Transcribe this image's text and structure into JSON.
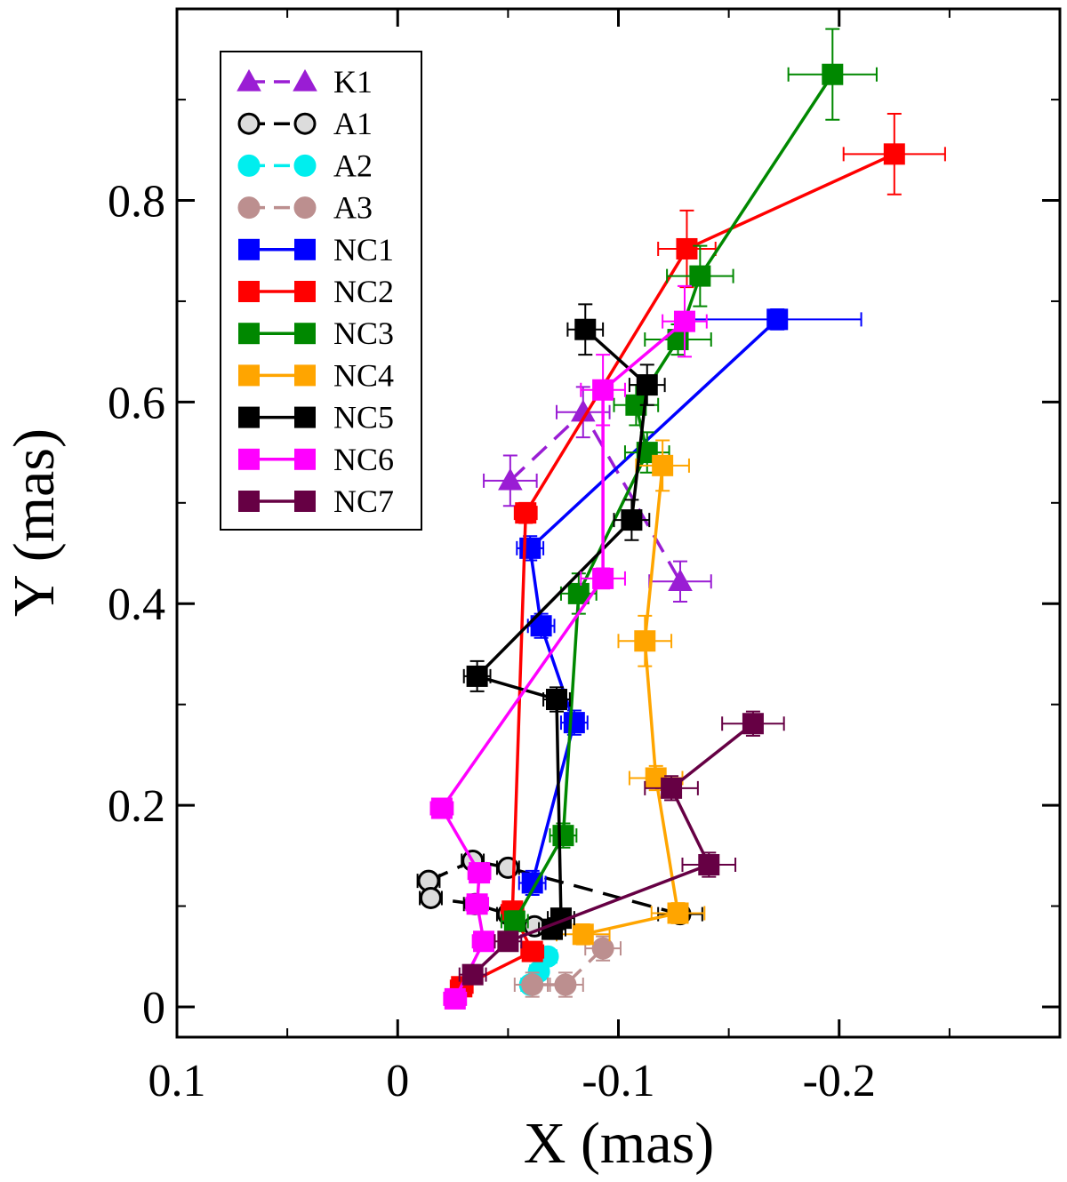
{
  "chart_data": {
    "type": "scatter",
    "title": "",
    "xlabel": "X (mas)",
    "ylabel": "Y (mas)",
    "xlim": [
      0.1,
      -0.3
    ],
    "ylim": [
      -0.03,
      0.99
    ],
    "x_ticks": [
      0.1,
      0,
      -0.1,
      -0.2
    ],
    "x_tick_labels": [
      "0.1",
      "0",
      "-0.1",
      "-0.2"
    ],
    "y_ticks": [
      0,
      0.2,
      0.4,
      0.6,
      0.8
    ],
    "y_tick_labels": [
      "0",
      "0.2",
      "0.4",
      "0.6",
      "0.8"
    ],
    "grid": false,
    "legend_position": "top-left",
    "series": [
      {
        "name": "K1",
        "color": "#9a1dd4",
        "marker": "triangle",
        "line": "dashed",
        "x": [
          -0.051,
          -0.084,
          -0.128
        ],
        "y": [
          0.522,
          0.59,
          0.422
        ],
        "xerr": [
          0.012,
          0.012,
          0.014
        ],
        "yerr": [
          0.025,
          0.025,
          0.02
        ]
      },
      {
        "name": "A1",
        "color": "#000000",
        "fill": "#dcdcdc",
        "marker": "circle",
        "line": "dashed",
        "x": [
          -0.128,
          -0.05,
          -0.034,
          -0.014,
          -0.015,
          -0.035,
          -0.05,
          -0.062
        ],
        "y": [
          0.092,
          0.138,
          0.145,
          0.125,
          0.108,
          0.102,
          0.092,
          0.08
        ],
        "xerr": [
          0.01,
          0.005,
          0.005,
          0.005,
          0.005,
          0.005,
          0.005,
          0.005
        ],
        "yerr": [
          0.008,
          0.006,
          0.006,
          0.006,
          0.006,
          0.006,
          0.006,
          0.006
        ]
      },
      {
        "name": "A2",
        "color": "#00eeee",
        "marker": "circle",
        "line": "dashed",
        "x": [
          -0.068,
          -0.064,
          -0.06
        ],
        "y": [
          0.05,
          0.035,
          0.022
        ],
        "xerr": [
          0.004,
          0.004,
          0.004
        ],
        "yerr": [
          0.006,
          0.006,
          0.006
        ]
      },
      {
        "name": "A3",
        "color": "#bc8f8f",
        "marker": "circle",
        "line": "dashed",
        "x": [
          -0.093,
          -0.076,
          -0.061
        ],
        "y": [
          0.058,
          0.022,
          0.022
        ],
        "xerr": [
          0.008,
          0.008,
          0.008
        ],
        "yerr": [
          0.012,
          0.012,
          0.012
        ]
      },
      {
        "name": "NC1",
        "color": "#0000ff",
        "marker": "square",
        "line": "solid",
        "x": [
          -0.172,
          -0.06,
          -0.065,
          -0.08,
          -0.061
        ],
        "y": [
          0.682,
          0.455,
          0.378,
          0.282,
          0.123
        ],
        "xerr": [
          0.038,
          0.006,
          0.006,
          0.006,
          0.006
        ],
        "yerr": [
          0.01,
          0.012,
          0.012,
          0.012,
          0.012
        ]
      },
      {
        "name": "NC2",
        "color": "#ff0000",
        "marker": "square",
        "line": "solid",
        "x": [
          -0.225,
          -0.131,
          -0.058,
          -0.052,
          -0.061,
          -0.029
        ],
        "y": [
          0.846,
          0.752,
          0.49,
          0.095,
          0.055,
          0.02
        ],
        "xerr": [
          0.023,
          0.013,
          0.005,
          0.005,
          0.005,
          0.005
        ],
        "yerr": [
          0.04,
          0.038,
          0.01,
          0.008,
          0.008,
          0.008
        ]
      },
      {
        "name": "NC3",
        "color": "#008800",
        "marker": "square",
        "line": "solid",
        "x": [
          -0.197,
          -0.137,
          -0.127,
          -0.108,
          -0.113,
          -0.082,
          -0.075,
          -0.053
        ],
        "y": [
          0.925,
          0.725,
          0.662,
          0.597,
          0.55,
          0.41,
          0.17,
          0.085
        ],
        "xerr": [
          0.02,
          0.015,
          0.015,
          0.01,
          0.01,
          0.008,
          0.006,
          0.006
        ],
        "yerr": [
          0.045,
          0.03,
          0.015,
          0.02,
          0.02,
          0.02,
          0.012,
          0.01
        ]
      },
      {
        "name": "NC4",
        "color": "#ffa500",
        "marker": "square",
        "line": "solid",
        "x": [
          -0.12,
          -0.112,
          -0.117,
          -0.127,
          -0.084
        ],
        "y": [
          0.537,
          0.363,
          0.227,
          0.093,
          0.072
        ],
        "xerr": [
          0.012,
          0.012,
          0.012,
          0.012,
          0.012
        ],
        "yerr": [
          0.025,
          0.025,
          0.012,
          0.01,
          0.01
        ]
      },
      {
        "name": "NC5",
        "color": "#000000",
        "marker": "square",
        "line": "solid",
        "x": [
          -0.085,
          -0.113,
          -0.106,
          -0.036,
          -0.072,
          -0.074,
          -0.07
        ],
        "y": [
          0.672,
          0.617,
          0.483,
          0.328,
          0.305,
          0.088,
          0.077
        ],
        "xerr": [
          0.008,
          0.008,
          0.008,
          0.006,
          0.006,
          0.006,
          0.006
        ],
        "yerr": [
          0.025,
          0.02,
          0.02,
          0.015,
          0.012,
          0.008,
          0.008
        ]
      },
      {
        "name": "NC6",
        "color": "#ff00ff",
        "marker": "square",
        "line": "solid",
        "x": [
          -0.13,
          -0.093,
          -0.093,
          -0.02,
          -0.037,
          -0.036,
          -0.039,
          -0.026
        ],
        "y": [
          0.68,
          0.612,
          0.425,
          0.197,
          0.133,
          0.102,
          0.065,
          0.008
        ],
        "xerr": [
          0.01,
          0.01,
          0.01,
          0.005,
          0.005,
          0.005,
          0.005,
          0.005
        ],
        "yerr": [
          0.035,
          0.035,
          0.01,
          0.006,
          0.006,
          0.006,
          0.006,
          0.006
        ]
      },
      {
        "name": "NC7",
        "color": "#660044",
        "marker": "square",
        "line": "solid",
        "x": [
          -0.161,
          -0.124,
          -0.141,
          -0.05,
          -0.034
        ],
        "y": [
          0.281,
          0.217,
          0.141,
          0.065,
          0.032
        ],
        "xerr": [
          0.014,
          0.012,
          0.012,
          0.006,
          0.006
        ],
        "yerr": [
          0.012,
          0.012,
          0.012,
          0.008,
          0.008
        ]
      }
    ]
  }
}
